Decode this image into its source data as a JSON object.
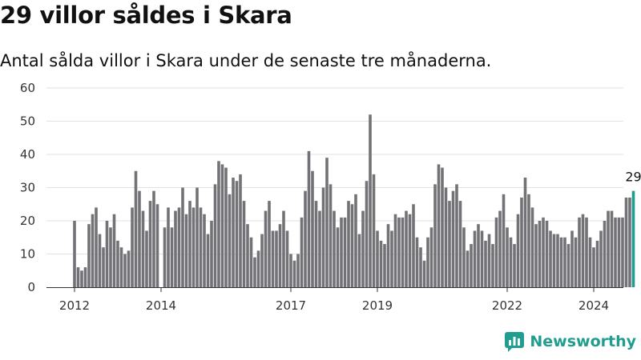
{
  "header": {
    "title": "29 villor såldes i Skara",
    "subtitle": "Antal sålda villor i Skara under de senaste tre månaderna."
  },
  "brand": {
    "name": "Newsworthy",
    "icon": "newsworthy-logo-icon",
    "color": "#1f9e90"
  },
  "colors": {
    "bar": "#737276",
    "highlight": "#1f9e90",
    "grid": "#e2e2e2",
    "axis": "#333333"
  },
  "chart_data": {
    "type": "bar",
    "x_ticks": [
      "2012",
      "2014",
      "2017",
      "2019",
      "2022",
      "2024"
    ],
    "x_tick_index": [
      0,
      24,
      60,
      84,
      120,
      144
    ],
    "ylim": [
      0,
      60
    ],
    "y_ticks": [
      0,
      10,
      20,
      30,
      40,
      50,
      60
    ],
    "grid": true,
    "highlight_last": true,
    "last_value_label": "29",
    "values": [
      20,
      6,
      5,
      6,
      19,
      22,
      24,
      16,
      12,
      20,
      18,
      22,
      14,
      12,
      10,
      11,
      24,
      35,
      29,
      23,
      17,
      26,
      29,
      25,
      0,
      18,
      24,
      18,
      23,
      24,
      30,
      22,
      26,
      24,
      30,
      24,
      22,
      16,
      20,
      31,
      38,
      37,
      36,
      28,
      33,
      32,
      34,
      26,
      19,
      15,
      9,
      11,
      16,
      23,
      26,
      17,
      17,
      19,
      23,
      17,
      10,
      8,
      10,
      21,
      29,
      41,
      35,
      26,
      23,
      30,
      39,
      31,
      23,
      18,
      21,
      21,
      26,
      25,
      28,
      16,
      23,
      32,
      52,
      34,
      17,
      14,
      13,
      19,
      17,
      22,
      21,
      21,
      23,
      22,
      25,
      15,
      12,
      8,
      15,
      18,
      31,
      37,
      36,
      30,
      26,
      29,
      31,
      26,
      18,
      11,
      13,
      17,
      19,
      17,
      14,
      16,
      13,
      21,
      23,
      28,
      18,
      15,
      13,
      22,
      27,
      33,
      28,
      24,
      19,
      20,
      21,
      20,
      17,
      16,
      16,
      15,
      15,
      13,
      17,
      15,
      21,
      22,
      21,
      15,
      12,
      14,
      17,
      20,
      23,
      23,
      21,
      21,
      21,
      27,
      27,
      29
    ]
  }
}
